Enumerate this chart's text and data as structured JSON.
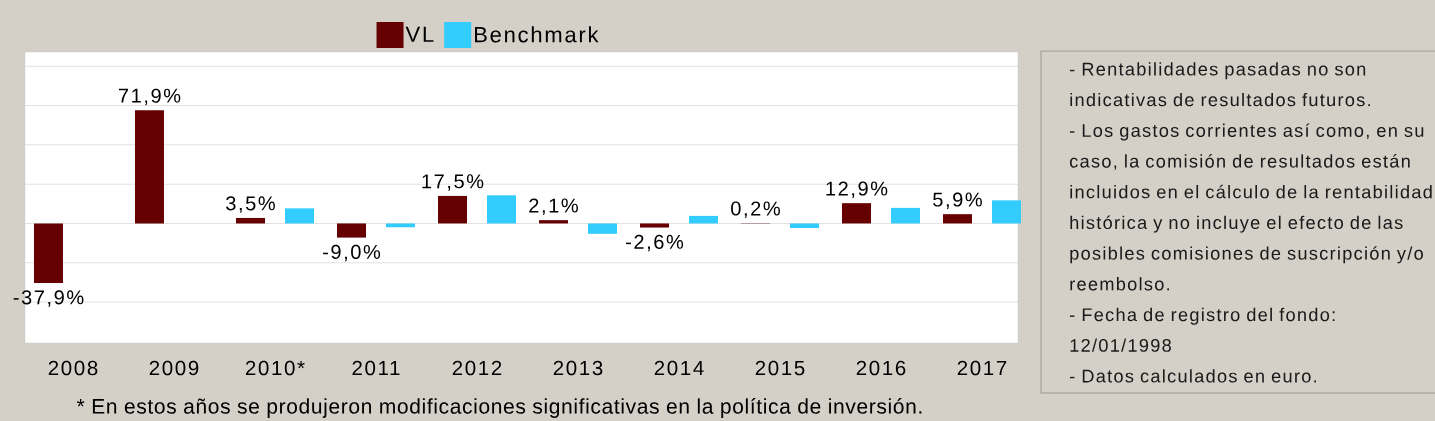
{
  "chart_data": {
    "type": "bar",
    "categories": [
      "2008",
      "2009",
      "2010*",
      "2011",
      "2012",
      "2013",
      "2014",
      "2015",
      "2016",
      "2017"
    ],
    "series": [
      {
        "name": "VL",
        "color": "#660000",
        "values": [
          -37.9,
          71.9,
          3.5,
          -9.0,
          17.5,
          2.1,
          -2.6,
          0.2,
          12.9,
          5.9
        ],
        "value_labels": [
          "-37,9%",
          "71,9%",
          "3,5%",
          "-9,0%",
          "17,5%",
          "2,1%",
          "-2,6%",
          "0,2%",
          "12,9%",
          "5,9%"
        ]
      },
      {
        "name": "Benchmark",
        "color": "#33ccff",
        "values": [
          null,
          null,
          9.6,
          -2.4,
          17.9,
          -6.6,
          4.8,
          -2.9,
          9.9,
          14.7
        ]
      }
    ],
    "ylim": [
      -76,
      109
    ],
    "yticks": [
      {
        "value": -50,
        "label": null
      },
      {
        "value": -25,
        "label": null
      },
      {
        "value": 0,
        "label": null
      },
      {
        "value": 25,
        "label": null
      },
      {
        "value": 50,
        "label": null
      },
      {
        "value": 75,
        "label": null
      },
      {
        "value": 100,
        "label": null
      }
    ],
    "tick_labels": "x",
    "grid": "y",
    "legend": "top",
    "annotations": [
      "- Rentabilidades pasadas no son indicativas de resultados futuros.",
      "- Los gastos corrientes así como, en su caso, la comisión de resultados están incluidos en el cálculo de la rentabilidad histórica y no incluye el efecto de las posibles comisiones de suscripción y/o reembolso.",
      "- Fecha de registro del fondo: 12/01/1998",
      "- Datos calculados en euro.",
      "* En estos años se produjeron modificaciones significativas en la política de inversión."
    ]
  }
}
